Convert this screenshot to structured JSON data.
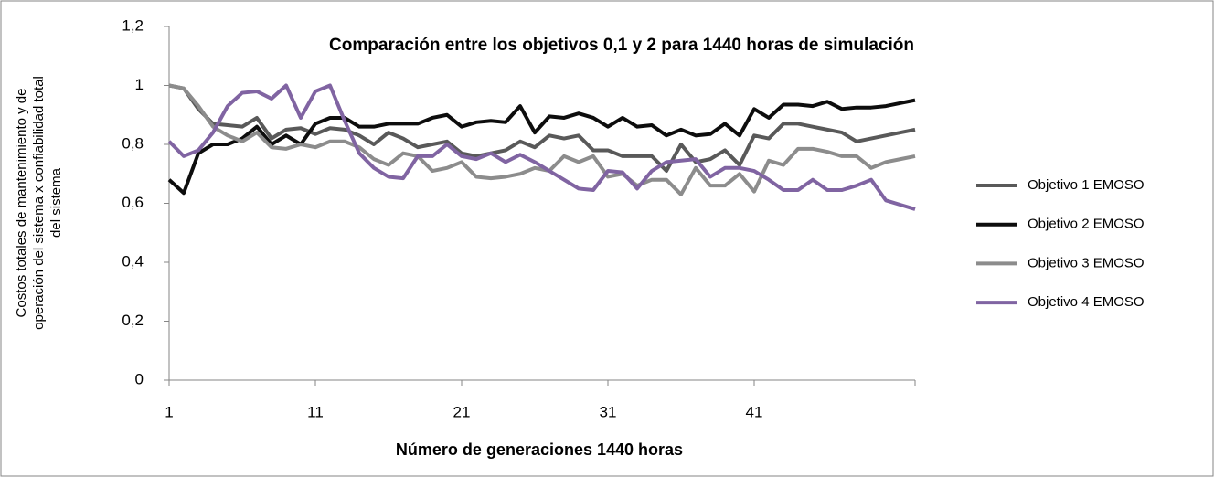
{
  "chart_data": {
    "type": "line",
    "title": "Comparación entre los objetivos 0,1 y 2 para 1440 horas de simulación",
    "xlabel": "Número de generaciones 1440 horas",
    "ylabel": [
      "Costos totales de mantenimiento y de",
      "operación del  sistema x confiabilidad total",
      "del sistema"
    ],
    "x": [
      1,
      2,
      3,
      4,
      5,
      6,
      7,
      8,
      9,
      10,
      11,
      12,
      13,
      14,
      15,
      16,
      17,
      18,
      19,
      20,
      21,
      22,
      23,
      24,
      25,
      26,
      27,
      28,
      29,
      30,
      31,
      32,
      33,
      34,
      35,
      36,
      37,
      38,
      39,
      40,
      41,
      42,
      43,
      44,
      45,
      46,
      47,
      48,
      49,
      50,
      51,
      52
    ],
    "xlim": [
      1,
      52
    ],
    "xticks": [
      1,
      11,
      21,
      31,
      41
    ],
    "ylim": [
      0,
      1.2
    ],
    "yticks": [
      0,
      {
        "value": 0.2,
        "label": "0,2"
      },
      {
        "value": 0.4,
        "label": "0,4"
      },
      {
        "value": 0.6,
        "label": "0,6"
      },
      {
        "value": 0.8,
        "label": "0,8"
      },
      1,
      {
        "value": 1.2,
        "label": "1,2"
      }
    ],
    "grid": false,
    "legend": "right",
    "series": [
      {
        "name": "Objetivo 1 EMOSO",
        "color": "#595959",
        "values": [
          1.0,
          0.99,
          0.92,
          0.87,
          0.865,
          0.86,
          0.89,
          0.82,
          0.85,
          0.855,
          0.835,
          0.855,
          0.85,
          0.83,
          0.8,
          0.84,
          0.82,
          0.79,
          0.8,
          0.81,
          0.77,
          0.76,
          0.77,
          0.78,
          0.81,
          0.79,
          0.83,
          0.82,
          0.83,
          0.78,
          0.78,
          0.76,
          0.76,
          0.76,
          0.71,
          0.8,
          0.74,
          0.75,
          0.78,
          0.73,
          0.83,
          0.82,
          0.87,
          0.87,
          0.86,
          0.85,
          0.84,
          0.81,
          0.82,
          0.83,
          0.84,
          0.85
        ]
      },
      {
        "name": "Objetivo 2 EMOSO",
        "color": "#0d0d0d",
        "values": [
          0.68,
          0.635,
          0.77,
          0.8,
          0.8,
          0.82,
          0.86,
          0.8,
          0.83,
          0.8,
          0.87,
          0.89,
          0.89,
          0.86,
          0.86,
          0.87,
          0.87,
          0.87,
          0.89,
          0.9,
          0.86,
          0.875,
          0.88,
          0.875,
          0.93,
          0.84,
          0.895,
          0.89,
          0.905,
          0.89,
          0.86,
          0.89,
          0.86,
          0.865,
          0.83,
          0.85,
          0.83,
          0.835,
          0.87,
          0.83,
          0.92,
          0.89,
          0.935,
          0.935,
          0.93,
          0.945,
          0.92,
          0.925,
          0.925,
          0.93,
          0.94,
          0.95
        ]
      },
      {
        "name": "Objetivo 3 EMOSO",
        "color": "#8c8c8c",
        "values": [
          1.0,
          0.99,
          0.93,
          0.86,
          0.83,
          0.81,
          0.84,
          0.79,
          0.785,
          0.8,
          0.79,
          0.81,
          0.81,
          0.79,
          0.75,
          0.73,
          0.77,
          0.76,
          0.71,
          0.72,
          0.74,
          0.69,
          0.685,
          0.69,
          0.7,
          0.72,
          0.71,
          0.76,
          0.74,
          0.76,
          0.69,
          0.7,
          0.66,
          0.68,
          0.68,
          0.63,
          0.72,
          0.66,
          0.66,
          0.7,
          0.64,
          0.745,
          0.73,
          0.785,
          0.785,
          0.775,
          0.76,
          0.76,
          0.72,
          0.74,
          0.75,
          0.76
        ]
      },
      {
        "name": "Objetivo 4 EMOSO",
        "color": "#8064a2",
        "values": [
          0.81,
          0.76,
          0.78,
          0.84,
          0.93,
          0.975,
          0.98,
          0.955,
          1.0,
          0.89,
          0.98,
          1.0,
          0.88,
          0.77,
          0.72,
          0.69,
          0.685,
          0.76,
          0.76,
          0.8,
          0.76,
          0.75,
          0.77,
          0.74,
          0.765,
          0.74,
          0.71,
          0.68,
          0.65,
          0.645,
          0.71,
          0.705,
          0.65,
          0.71,
          0.74,
          0.745,
          0.75,
          0.69,
          0.72,
          0.72,
          0.71,
          0.68,
          0.645,
          0.645,
          0.68,
          0.645,
          0.645,
          0.66,
          0.68,
          0.61,
          0.595,
          0.58
        ]
      }
    ]
  }
}
